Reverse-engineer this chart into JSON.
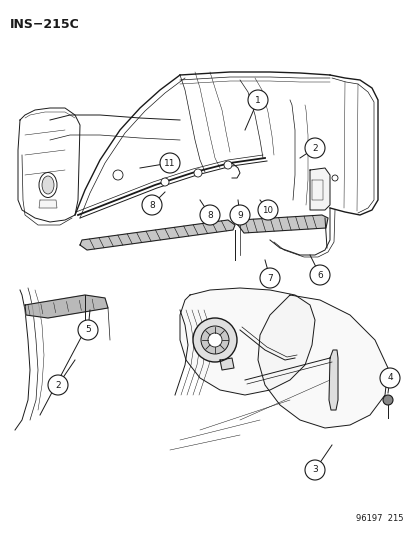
{
  "title": "INS−215C",
  "footer_text": "96197  215",
  "bg_color": "#ffffff",
  "fg_color": "#1a1a1a",
  "figsize": [
    4.14,
    5.33
  ],
  "dpi": 100,
  "title_fontsize": 9,
  "footer_fontsize": 6,
  "callout_r": 0.018,
  "callout_fontsize": 6.5,
  "lw_heavy": 1.0,
  "lw_med": 0.7,
  "lw_light": 0.5,
  "lw_thin": 0.35
}
